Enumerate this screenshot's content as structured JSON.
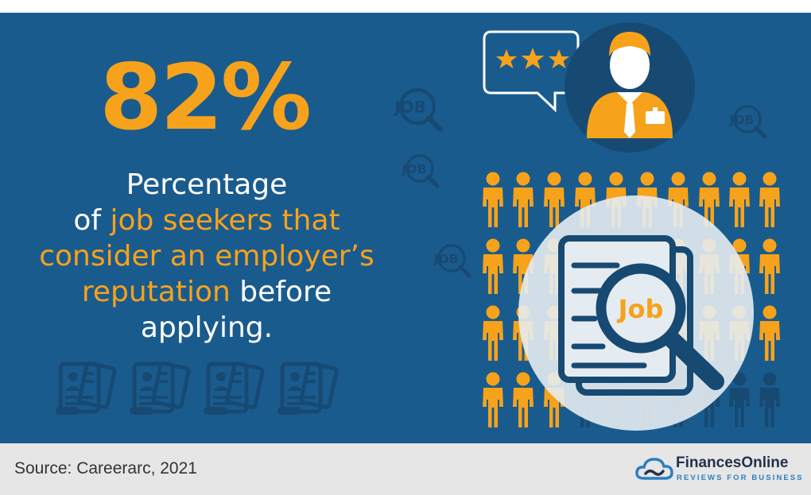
{
  "headline": {
    "value": "82%"
  },
  "description": {
    "line1": "Percentage",
    "line2_prefix": "of ",
    "line2_highlight": "job seekers that",
    "line3_highlight": "consider an employer’s",
    "line4_highlight": "reputation",
    "line4_suffix": " before",
    "line5": "applying."
  },
  "illustration": {
    "small_badge_text": "JOB",
    "magnifier_text": "Job",
    "rating_stars": 3,
    "icons": [
      "speech-bubble-icon",
      "employer-avatar-icon",
      "crowd-person-icon",
      "resume-document-icon",
      "magnifier-icon",
      "job-search-icon"
    ]
  },
  "footer": {
    "source": "Source: Careerarc, 2021",
    "brand_name": "FinancesOnline",
    "brand_tagline": "REVIEWS FOR BUSINESS"
  },
  "colors": {
    "background": "#1a5b8e",
    "accent": "#f7a21b",
    "dark_accent": "#174a73",
    "text": "#ffffff",
    "footer_bg": "#e6e6e6"
  }
}
